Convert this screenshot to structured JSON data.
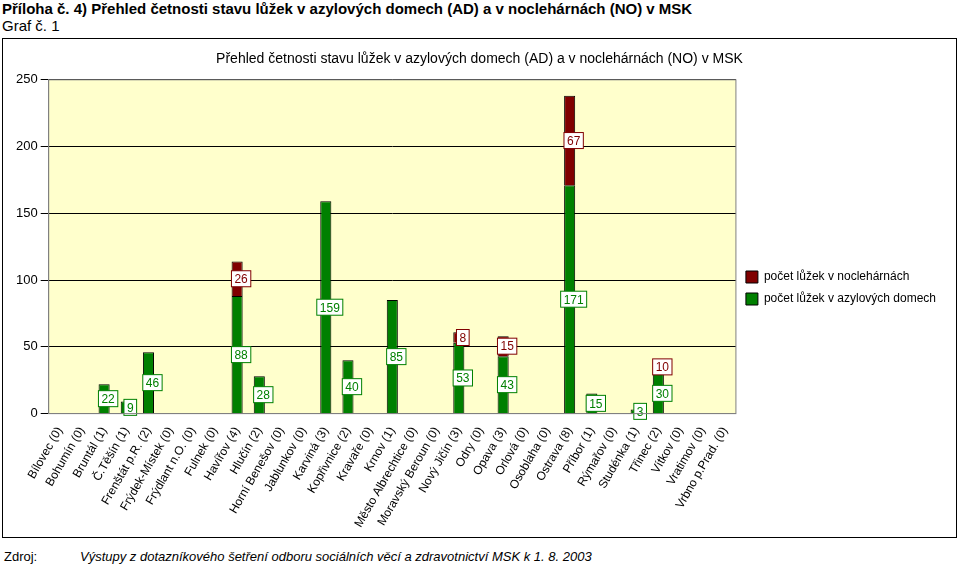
{
  "page": {
    "heading": "Příloha č. 4) Přehled četnosti stavu lůžek v azylových domech (AD) a v noclehárnách (NO) v MSK",
    "subheading": "Graf č. 1",
    "source_label": "Zdroj:",
    "source": "Výstupy z dotazníkového šetření odboru sociálních věcí a zdravotnictví MSK k 1. 8. 2003"
  },
  "chart_data": {
    "type": "bar",
    "title": "Přehled četnosti stavu lůžek v azylových domech (AD) a v noclehárnách (NO) v MSK",
    "categories": [
      "Bílovec (0)",
      "Bohumín (0)",
      "Bruntál (1)",
      "Č.Těšín (1)",
      "Frenštát p.R. (2)",
      "Frýdek-Místek (0)",
      "Frýdlant n.O. (0)",
      "Fulnek (0)",
      "Havířov (4)",
      "Hlučín (2)",
      "Horní Benešov (0)",
      "Jablunkov (0)",
      "Karviná (3)",
      "Kopřivnice (2)",
      "Kravaře (0)",
      "Krnov (1)",
      "Město Albrechtice (0)",
      "Moravský Beroun (0)",
      "Nový Jičín (3)",
      "Odry (0)",
      "Opava (3)",
      "Orlová (0)",
      "Osoblaha (0)",
      "Ostrava (8)",
      "Příbor (1)",
      "Rýmařov (0)",
      "Studénka (1)",
      "Třinec (2)",
      "Vítkov (0)",
      "Vratimov (0)",
      "Vrbno p.Prad. (0)"
    ],
    "series": [
      {
        "name": "počet lůžek v azylových domech",
        "color": "#008000",
        "values": [
          null,
          null,
          22,
          9,
          46,
          null,
          null,
          null,
          88,
          28,
          null,
          null,
          159,
          40,
          null,
          85,
          null,
          null,
          53,
          null,
          43,
          null,
          null,
          171,
          15,
          null,
          3,
          30,
          null,
          null,
          null
        ]
      },
      {
        "name": "počet lůžek v noclehárnách",
        "color": "#800000",
        "values": [
          null,
          null,
          null,
          null,
          null,
          null,
          null,
          null,
          26,
          null,
          null,
          null,
          null,
          null,
          null,
          null,
          null,
          null,
          8,
          null,
          15,
          null,
          null,
          67,
          null,
          null,
          null,
          10,
          null,
          null,
          null
        ]
      }
    ],
    "ylim": [
      0,
      250
    ],
    "yticks": [
      0,
      50,
      100,
      150,
      200,
      250
    ],
    "grid": true,
    "stacked": true,
    "legend": "right",
    "data_labels": true
  }
}
